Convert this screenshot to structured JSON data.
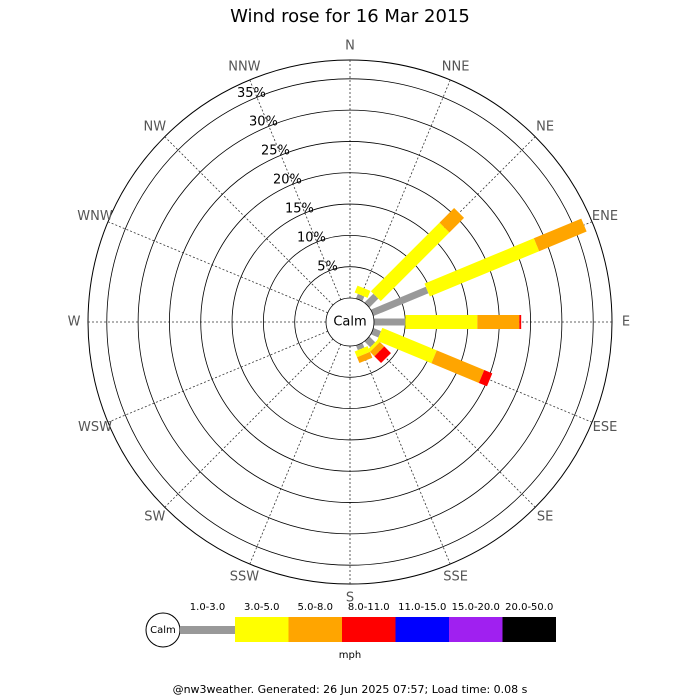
{
  "chart_data": {
    "type": "windrose",
    "title": "Wind rose for 16 Mar 2015",
    "directions": [
      "N",
      "NNE",
      "NE",
      "ENE",
      "E",
      "ESE",
      "SE",
      "SSE",
      "S",
      "SSW",
      "SW",
      "WSW",
      "W",
      "WNW",
      "NW",
      "NNW"
    ],
    "rlim": [
      0,
      38
    ],
    "rticks": [
      {
        "value": 5,
        "label": "5%"
      },
      {
        "value": 10,
        "label": "10%"
      },
      {
        "value": 15,
        "label": "15%"
      },
      {
        "value": 20,
        "label": "20%"
      },
      {
        "value": 25,
        "label": "25%"
      },
      {
        "value": 30,
        "label": "30%"
      },
      {
        "value": 35,
        "label": "35%"
      }
    ],
    "calm_label": "Calm",
    "legend_unit": "mph",
    "series": [
      {
        "name": "1.0-3.0",
        "color": "#999999",
        "values": [
          0,
          0.8,
          2.0,
          9.5,
          5.0,
          1.3,
          1.3,
          0.8,
          0,
          0,
          0,
          0,
          0,
          0,
          0,
          0
        ]
      },
      {
        "name": "3.0-5.0",
        "color": "#ffff00",
        "values": [
          0,
          1.2,
          15.5,
          18.9,
          11.5,
          9.4,
          0.5,
          1.0,
          0,
          0,
          0,
          0,
          0,
          0,
          0,
          0
        ]
      },
      {
        "name": "5.0-8.0",
        "color": "#ffa500",
        "values": [
          0,
          0,
          3.3,
          8.2,
          6.7,
          8.2,
          1.0,
          1.0,
          0,
          0,
          0,
          0,
          0,
          0,
          0,
          0
        ]
      },
      {
        "name": "8.0-11.0",
        "color": "#ff0000",
        "values": [
          0,
          0,
          0,
          0,
          0.3,
          1.4,
          1.5,
          0,
          0,
          0,
          0,
          0,
          0,
          0,
          0,
          0
        ]
      },
      {
        "name": "11.0-15.0",
        "color": "#0000ff",
        "values": [
          0,
          0,
          0,
          0,
          0,
          0,
          0,
          0,
          0,
          0,
          0,
          0,
          0,
          0,
          0,
          0
        ]
      },
      {
        "name": "15.0-20.0",
        "color": "#a020f0",
        "values": [
          0,
          0,
          0,
          0,
          0,
          0,
          0,
          0,
          0,
          0,
          0,
          0,
          0,
          0,
          0,
          0
        ]
      },
      {
        "name": "20.0-50.0",
        "color": "#000000",
        "values": [
          0,
          0,
          0,
          0,
          0,
          0,
          0,
          0,
          0,
          0,
          0,
          0,
          0,
          0,
          0,
          0
        ]
      }
    ],
    "footer": "@nw3weather. Generated: 26 Jun 2025 07:57; Load time: 0.08 s"
  }
}
